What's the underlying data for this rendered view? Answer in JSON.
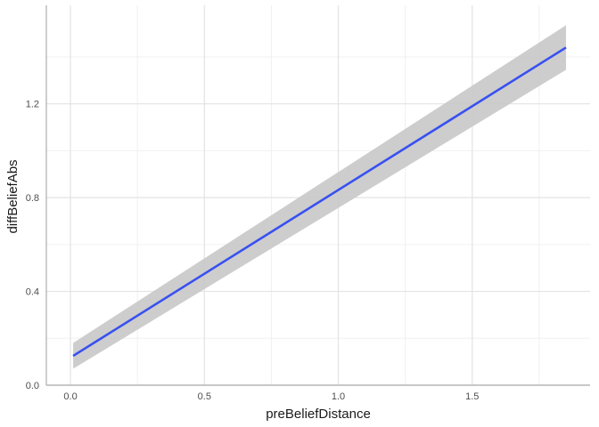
{
  "chart_data": {
    "type": "line",
    "title": "",
    "xlabel": "preBeliefDistance",
    "ylabel": "diffBeliefAbs",
    "xlim": [
      -0.09,
      1.94
    ],
    "ylim": [
      0.0,
      1.62
    ],
    "x_ticks": [
      {
        "value": 0.0,
        "label": "0.0"
      },
      {
        "value": 0.5,
        "label": "0.5"
      },
      {
        "value": 1.0,
        "label": "1.0"
      },
      {
        "value": 1.5,
        "label": "1.5"
      }
    ],
    "y_ticks": [
      {
        "value": 0.0,
        "label": "0.0"
      },
      {
        "value": 0.4,
        "label": "0.4"
      },
      {
        "value": 0.8,
        "label": "0.8"
      },
      {
        "value": 1.2,
        "label": "1.2"
      }
    ],
    "grid": true,
    "series": [
      {
        "kind": "smooth-fit",
        "x": [
          0.01,
          1.85
        ],
        "y": [
          0.125,
          1.44
        ],
        "ribbon": {
          "x": [
            0.01,
            1.85
          ],
          "lower": [
            0.07,
            1.345
          ],
          "upper": [
            0.18,
            1.535
          ]
        }
      }
    ],
    "colors": {
      "line": "#3850f0",
      "ribbon": "#c8c8c8",
      "grid_major": "#e3e3e3",
      "grid_minor": "#f0f0f0",
      "axis": "#b8b8b8"
    }
  }
}
